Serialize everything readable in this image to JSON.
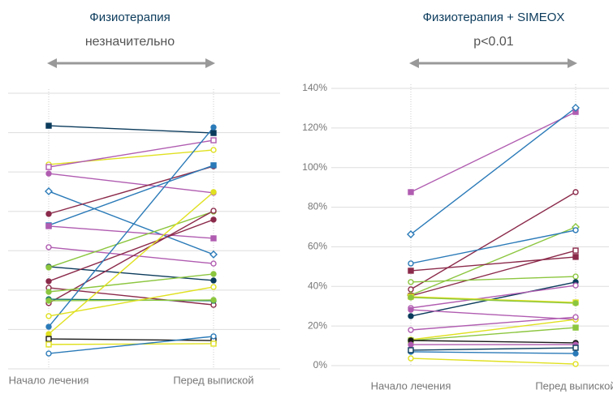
{
  "chart_data": [
    {
      "type": "slope",
      "title": "Физиотерапия",
      "subtitle": "незначительно",
      "categories": [
        "Начало лечения",
        "Перед выпиской"
      ],
      "ylim": [
        0,
        140
      ],
      "yticks": [
        0,
        20,
        40,
        60,
        80,
        100,
        120,
        140
      ],
      "show_tick_labels": false,
      "grid": true,
      "series": [
        {
          "color": "#0b3b5c",
          "marker": "square",
          "values": [
            123.5,
            119.8
          ]
        },
        {
          "color": "#e0e020",
          "marker": "circle-open",
          "values": [
            103.8,
            111.2
          ]
        },
        {
          "color": "#b05cb0",
          "marker": "square-open",
          "values": [
            102.5,
            116.1
          ]
        },
        {
          "color": "#b05cb0",
          "marker": "circle",
          "values": [
            99.2,
            89.4
          ]
        },
        {
          "color": "#2a7ab8",
          "marker": "diamond-open",
          "values": [
            90.2,
            58.1
          ]
        },
        {
          "color": "#8b2a4a",
          "marker": "circle",
          "values": [
            78.7,
            102.9
          ]
        },
        {
          "color": "#2a7ab8",
          "marker": "square",
          "values": [
            72.9,
            103.4
          ]
        },
        {
          "color": "#b05cb0",
          "marker": "square",
          "values": [
            72.5,
            66.3
          ]
        },
        {
          "color": "#b05cb0",
          "marker": "circle-open",
          "values": [
            61.8,
            53.5
          ]
        },
        {
          "color": "#0b3b5c",
          "marker": "circle",
          "values": [
            51.9,
            44.9
          ]
        },
        {
          "color": "#8cc63f",
          "marker": "circle",
          "values": [
            51.5,
            79.9
          ]
        },
        {
          "color": "#8b2a4a",
          "marker": "circle",
          "values": [
            44.5,
            75.8
          ]
        },
        {
          "color": "#8b2a4a",
          "marker": "circle-open",
          "values": [
            41.2,
            32.5
          ]
        },
        {
          "color": "#8b2a4a",
          "marker": "circle-open",
          "values": [
            33.4,
            80.3
          ]
        },
        {
          "color": "#8cc63f",
          "marker": "circle",
          "values": [
            39.1,
            48.2
          ]
        },
        {
          "color": "#1a7a6a",
          "marker": "circle",
          "values": [
            35.4,
            34.6
          ]
        },
        {
          "color": "#8cc63f",
          "marker": "circle",
          "values": [
            34.6,
            35.0
          ]
        },
        {
          "color": "#2a7ab8",
          "marker": "circle",
          "values": [
            21.4,
            122.7
          ]
        },
        {
          "color": "#e0e020",
          "marker": "circle-open",
          "values": [
            26.8,
            41.6
          ]
        },
        {
          "color": "#e0e020",
          "marker": "circle",
          "values": [
            17.7,
            89.8
          ]
        },
        {
          "color": "#1a1a1a",
          "marker": "square-open",
          "values": [
            15.2,
            14.4
          ]
        },
        {
          "color": "#e0e020",
          "marker": "square-open",
          "values": [
            12.4,
            12.8
          ]
        },
        {
          "color": "#2a7ab8",
          "marker": "circle-open",
          "values": [
            7.8,
            16.5
          ]
        }
      ]
    },
    {
      "type": "slope",
      "title": "Физиотерапия + SIMEOX",
      "subtitle": "p<0.01",
      "categories": [
        "Начало лечения",
        "Перед выпиской"
      ],
      "ylim": [
        0,
        140
      ],
      "yticks": [
        {
          "value": 0,
          "label": "0%"
        },
        {
          "value": 20,
          "label": "20%"
        },
        {
          "value": 40,
          "label": "40%"
        },
        {
          "value": 60,
          "label": "60%"
        },
        {
          "value": 80,
          "label": "80%"
        },
        {
          "value": 100,
          "label": "100%"
        },
        {
          "value": 120,
          "label": "120%"
        },
        {
          "value": 140,
          "label": "140%"
        }
      ],
      "show_tick_labels": true,
      "grid": true,
      "series": [
        {
          "color": "#b05cb0",
          "marker": "square",
          "values": [
            87.6,
            128.1
          ]
        },
        {
          "color": "#2a7ab8",
          "marker": "diamond-open",
          "values": [
            66.3,
            130.2
          ]
        },
        {
          "color": "#8b2a4a",
          "marker": "circle-open",
          "values": [
            38.5,
            87.6
          ]
        },
        {
          "color": "#8cc63f",
          "marker": "diamond-open",
          "values": [
            35.6,
            70.0
          ]
        },
        {
          "color": "#2a7ab8",
          "marker": "circle-open",
          "values": [
            51.6,
            68.4
          ]
        },
        {
          "color": "#8b2a4a",
          "marker": "square",
          "values": [
            47.9,
            54.9
          ]
        },
        {
          "color": "#8b2a4a",
          "marker": "square-open",
          "values": [
            35.2,
            58.1
          ]
        },
        {
          "color": "#8cc63f",
          "marker": "circle-open",
          "values": [
            42.2,
            45.0
          ]
        },
        {
          "color": "#0b3b5c",
          "marker": "circle",
          "values": [
            25.0,
            42.2
          ]
        },
        {
          "color": "#b05cb0",
          "marker": "circle-open",
          "values": [
            29.1,
            40.5
          ]
        },
        {
          "color": "#e0e020",
          "marker": "square",
          "values": [
            34.8,
            31.9
          ]
        },
        {
          "color": "#8cc63f",
          "marker": "circle",
          "values": [
            34.4,
            31.5
          ]
        },
        {
          "color": "#b05cb0",
          "marker": "circle",
          "values": [
            28.2,
            23.3
          ]
        },
        {
          "color": "#e0e020",
          "marker": "circle-open",
          "values": [
            13.1,
            23.3
          ]
        },
        {
          "color": "#b05cb0",
          "marker": "circle-open",
          "values": [
            18.0,
            24.5
          ]
        },
        {
          "color": "#8cc63f",
          "marker": "square",
          "values": [
            12.7,
            19.2
          ]
        },
        {
          "color": "#1a1a1a",
          "marker": "circle",
          "values": [
            12.7,
            11.5
          ]
        },
        {
          "color": "#b05cb0",
          "marker": "circle",
          "values": [
            10.6,
            10.6
          ]
        },
        {
          "color": "#2a7ab8",
          "marker": "circle",
          "values": [
            7.0,
            6.1
          ]
        },
        {
          "color": "#0b3b5c",
          "marker": "square-open",
          "values": [
            7.8,
            9.0
          ]
        },
        {
          "color": "#e0e020",
          "marker": "circle-open",
          "values": [
            3.7,
            0.8
          ]
        }
      ]
    }
  ]
}
